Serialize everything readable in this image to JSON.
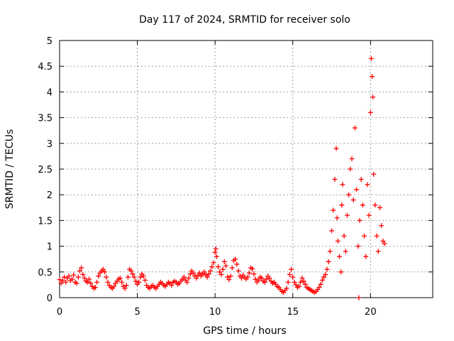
{
  "chart_data": {
    "type": "scatter",
    "title": "Day 117 of 2024, SRMTID for receiver solo",
    "xlabel": "GPS time / hours",
    "ylabel": "SRMTID / TECUs",
    "xlim": [
      0,
      24
    ],
    "ylim": [
      0,
      5
    ],
    "x_ticks": [
      0,
      5,
      10,
      15,
      20
    ],
    "x_tick_labels": [
      "0",
      "5",
      "10",
      "15",
      "20"
    ],
    "y_ticks": [
      0,
      0.5,
      1,
      1.5,
      2,
      2.5,
      3,
      3.5,
      4,
      4.5,
      5
    ],
    "y_tick_labels": [
      "0",
      "0.5",
      "1",
      "1.5",
      "2",
      "2.5",
      "3",
      "3.5",
      "4",
      "4.5",
      "5"
    ],
    "grid": true,
    "marker": "+",
    "series": [
      {
        "name": "SRMTID",
        "color": "#ff0000",
        "points": [
          [
            0.0,
            0.35
          ],
          [
            0.1,
            0.28
          ],
          [
            0.2,
            0.33
          ],
          [
            0.3,
            0.4
          ],
          [
            0.4,
            0.3
          ],
          [
            0.5,
            0.38
          ],
          [
            0.6,
            0.42
          ],
          [
            0.7,
            0.33
          ],
          [
            0.8,
            0.36
          ],
          [
            0.9,
            0.44
          ],
          [
            1.0,
            0.3
          ],
          [
            1.1,
            0.28
          ],
          [
            1.2,
            0.4
          ],
          [
            1.3,
            0.52
          ],
          [
            1.4,
            0.58
          ],
          [
            1.5,
            0.45
          ],
          [
            1.6,
            0.38
          ],
          [
            1.7,
            0.32
          ],
          [
            1.8,
            0.3
          ],
          [
            1.9,
            0.36
          ],
          [
            2.0,
            0.28
          ],
          [
            2.1,
            0.22
          ],
          [
            2.2,
            0.18
          ],
          [
            2.3,
            0.2
          ],
          [
            2.4,
            0.3
          ],
          [
            2.5,
            0.42
          ],
          [
            2.6,
            0.48
          ],
          [
            2.7,
            0.52
          ],
          [
            2.8,
            0.55
          ],
          [
            2.9,
            0.5
          ],
          [
            3.0,
            0.4
          ],
          [
            3.1,
            0.3
          ],
          [
            3.2,
            0.24
          ],
          [
            3.3,
            0.2
          ],
          [
            3.4,
            0.18
          ],
          [
            3.5,
            0.22
          ],
          [
            3.6,
            0.28
          ],
          [
            3.7,
            0.32
          ],
          [
            3.8,
            0.36
          ],
          [
            3.9,
            0.38
          ],
          [
            4.0,
            0.3
          ],
          [
            4.1,
            0.22
          ],
          [
            4.2,
            0.18
          ],
          [
            4.3,
            0.24
          ],
          [
            4.4,
            0.4
          ],
          [
            4.5,
            0.55
          ],
          [
            4.6,
            0.52
          ],
          [
            4.7,
            0.46
          ],
          [
            4.8,
            0.4
          ],
          [
            4.9,
            0.32
          ],
          [
            5.0,
            0.26
          ],
          [
            5.1,
            0.3
          ],
          [
            5.2,
            0.4
          ],
          [
            5.3,
            0.46
          ],
          [
            5.4,
            0.42
          ],
          [
            5.5,
            0.34
          ],
          [
            5.6,
            0.24
          ],
          [
            5.7,
            0.2
          ],
          [
            5.8,
            0.18
          ],
          [
            5.9,
            0.22
          ],
          [
            6.0,
            0.24
          ],
          [
            6.1,
            0.2
          ],
          [
            6.2,
            0.18
          ],
          [
            6.3,
            0.22
          ],
          [
            6.4,
            0.26
          ],
          [
            6.5,
            0.3
          ],
          [
            6.6,
            0.28
          ],
          [
            6.7,
            0.24
          ],
          [
            6.8,
            0.22
          ],
          [
            6.9,
            0.26
          ],
          [
            7.0,
            0.3
          ],
          [
            7.1,
            0.28
          ],
          [
            7.2,
            0.24
          ],
          [
            7.3,
            0.3
          ],
          [
            7.4,
            0.32
          ],
          [
            7.5,
            0.3
          ],
          [
            7.6,
            0.26
          ],
          [
            7.7,
            0.28
          ],
          [
            7.8,
            0.32
          ],
          [
            7.9,
            0.36
          ],
          [
            8.0,
            0.4
          ],
          [
            8.1,
            0.34
          ],
          [
            8.2,
            0.3
          ],
          [
            8.3,
            0.38
          ],
          [
            8.4,
            0.46
          ],
          [
            8.5,
            0.52
          ],
          [
            8.6,
            0.48
          ],
          [
            8.7,
            0.42
          ],
          [
            8.8,
            0.38
          ],
          [
            8.9,
            0.44
          ],
          [
            9.0,
            0.48
          ],
          [
            9.1,
            0.42
          ],
          [
            9.2,
            0.46
          ],
          [
            9.3,
            0.5
          ],
          [
            9.4,
            0.44
          ],
          [
            9.5,
            0.4
          ],
          [
            9.6,
            0.46
          ],
          [
            9.7,
            0.52
          ],
          [
            9.8,
            0.6
          ],
          [
            9.9,
            0.68
          ],
          [
            10.0,
            0.88
          ],
          [
            10.05,
            0.95
          ],
          [
            10.1,
            0.8
          ],
          [
            10.2,
            0.6
          ],
          [
            10.3,
            0.5
          ],
          [
            10.4,
            0.45
          ],
          [
            10.5,
            0.55
          ],
          [
            10.6,
            0.7
          ],
          [
            10.7,
            0.62
          ],
          [
            10.8,
            0.4
          ],
          [
            10.9,
            0.35
          ],
          [
            11.0,
            0.42
          ],
          [
            11.1,
            0.58
          ],
          [
            11.2,
            0.72
          ],
          [
            11.3,
            0.75
          ],
          [
            11.4,
            0.65
          ],
          [
            11.5,
            0.52
          ],
          [
            11.6,
            0.42
          ],
          [
            11.7,
            0.38
          ],
          [
            11.8,
            0.44
          ],
          [
            11.9,
            0.4
          ],
          [
            12.0,
            0.36
          ],
          [
            12.1,
            0.4
          ],
          [
            12.2,
            0.48
          ],
          [
            12.3,
            0.58
          ],
          [
            12.4,
            0.56
          ],
          [
            12.5,
            0.46
          ],
          [
            12.6,
            0.36
          ],
          [
            12.7,
            0.3
          ],
          [
            12.8,
            0.34
          ],
          [
            12.9,
            0.4
          ],
          [
            13.0,
            0.38
          ],
          [
            13.1,
            0.32
          ],
          [
            13.2,
            0.3
          ],
          [
            13.3,
            0.36
          ],
          [
            13.4,
            0.42
          ],
          [
            13.5,
            0.38
          ],
          [
            13.6,
            0.32
          ],
          [
            13.7,
            0.28
          ],
          [
            13.8,
            0.3
          ],
          [
            13.9,
            0.26
          ],
          [
            14.0,
            0.22
          ],
          [
            14.1,
            0.2
          ],
          [
            14.2,
            0.16
          ],
          [
            14.3,
            0.12
          ],
          [
            14.4,
            0.1
          ],
          [
            14.5,
            0.14
          ],
          [
            14.6,
            0.18
          ],
          [
            14.7,
            0.3
          ],
          [
            14.8,
            0.45
          ],
          [
            14.9,
            0.55
          ],
          [
            15.0,
            0.4
          ],
          [
            15.1,
            0.3
          ],
          [
            15.2,
            0.25
          ],
          [
            15.3,
            0.2
          ],
          [
            15.4,
            0.22
          ],
          [
            15.5,
            0.3
          ],
          [
            15.6,
            0.38
          ],
          [
            15.7,
            0.32
          ],
          [
            15.8,
            0.26
          ],
          [
            15.9,
            0.2
          ],
          [
            16.0,
            0.18
          ],
          [
            16.1,
            0.16
          ],
          [
            16.2,
            0.14
          ],
          [
            16.3,
            0.12
          ],
          [
            16.4,
            0.1
          ],
          [
            16.5,
            0.12
          ],
          [
            16.6,
            0.16
          ],
          [
            16.7,
            0.2
          ],
          [
            16.8,
            0.26
          ],
          [
            16.9,
            0.34
          ],
          [
            17.0,
            0.4
          ],
          [
            17.1,
            0.45
          ],
          [
            17.2,
            0.55
          ],
          [
            17.3,
            0.7
          ],
          [
            17.4,
            0.9
          ],
          [
            17.5,
            1.3
          ],
          [
            17.6,
            1.7
          ],
          [
            17.7,
            2.3
          ],
          [
            17.8,
            2.9
          ],
          [
            17.85,
            1.55
          ],
          [
            17.9,
            1.1
          ],
          [
            18.0,
            0.8
          ],
          [
            18.1,
            0.5
          ],
          [
            18.15,
            1.8
          ],
          [
            18.2,
            2.2
          ],
          [
            18.3,
            1.2
          ],
          [
            18.4,
            0.9
          ],
          [
            18.5,
            1.6
          ],
          [
            18.6,
            2.0
          ],
          [
            18.7,
            2.5
          ],
          [
            18.8,
            2.7
          ],
          [
            18.9,
            1.9
          ],
          [
            19.0,
            3.3
          ],
          [
            19.1,
            2.1
          ],
          [
            19.2,
            1.0
          ],
          [
            19.25,
            0.0
          ],
          [
            19.3,
            1.5
          ],
          [
            19.4,
            2.3
          ],
          [
            19.5,
            1.8
          ],
          [
            19.6,
            1.2
          ],
          [
            19.7,
            0.8
          ],
          [
            19.8,
            2.2
          ],
          [
            19.9,
            1.6
          ],
          [
            20.0,
            3.6
          ],
          [
            20.05,
            4.65
          ],
          [
            20.1,
            4.3
          ],
          [
            20.15,
            3.9
          ],
          [
            20.2,
            2.4
          ],
          [
            20.3,
            1.8
          ],
          [
            20.4,
            1.2
          ],
          [
            20.5,
            0.9
          ],
          [
            20.6,
            1.75
          ],
          [
            20.7,
            1.4
          ],
          [
            20.8,
            1.1
          ],
          [
            20.9,
            1.05
          ]
        ]
      }
    ]
  }
}
